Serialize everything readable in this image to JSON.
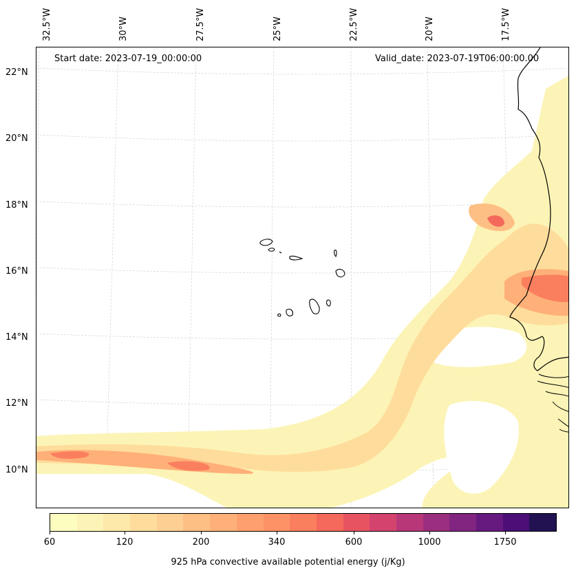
{
  "header": {
    "start_date": "Start date: 2023-07-19_00:00:00",
    "valid_date": "Valid_date: 2023-07-19T06:00:00.00"
  },
  "axes": {
    "lon_labels": [
      "32.5°W",
      "30°W",
      "27.5°W",
      "25°W",
      "22.5°W",
      "20°W",
      "17.5°W"
    ],
    "lat_labels": [
      "22°N",
      "20°N",
      "18°N",
      "16°N",
      "14°N",
      "12°N",
      "10°N"
    ],
    "grid": true
  },
  "colorbar": {
    "label": "925 hPa convective available potential energy (j/Kg)",
    "tick_labels": [
      "60",
      "120",
      "200",
      "340",
      "600",
      "1000",
      "1750"
    ],
    "colors": [
      "#fcfdbf",
      "#fcf4b6",
      "#fde9a9",
      "#fedd9c",
      "#fecf92",
      "#febf84",
      "#feb078",
      "#fda06e",
      "#fd9266",
      "#fa7f5e",
      "#f4695c",
      "#e85362",
      "#d3436e",
      "#b73779",
      "#9c2e7f",
      "#812581",
      "#661a80",
      "#4b0f77",
      "#231252"
    ]
  },
  "map": {
    "projection": "Lambert conformal",
    "features": [
      "coastline: West African coast (Mauritania, Senegal, Gambia, Guinea-Bissau)",
      "Cape Verde islands"
    ],
    "cape_field": "high CAPE band over Senegal near 15–16°N (up to ~600–1000 j/Kg); moderate band along 10–11°N between 32.5°W and 25°W (~200–600 j/Kg); broad 60–200 j/Kg region south-east"
  }
}
